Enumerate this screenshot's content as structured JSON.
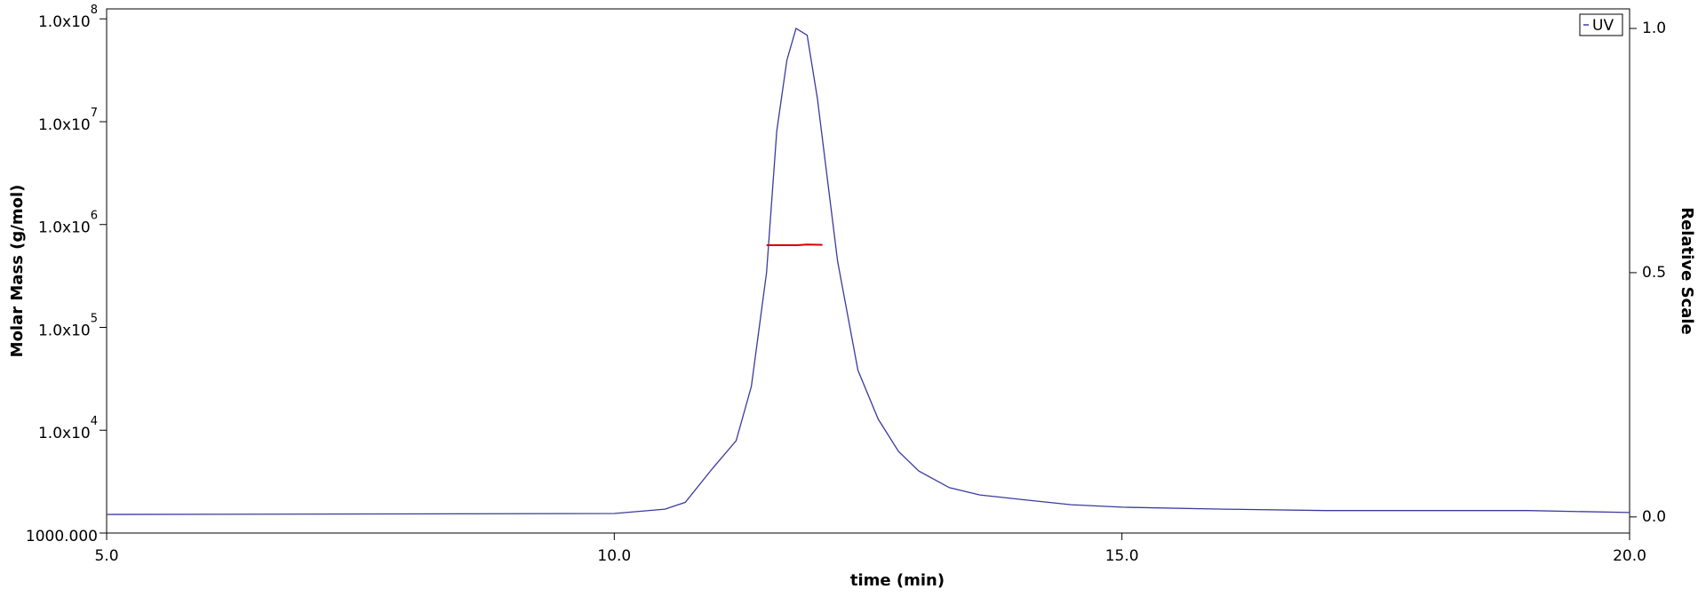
{
  "chart_data": {
    "type": "line",
    "xlabel": "time (min)",
    "ylabel": "Molar Mass (g/mol)",
    "y2label": "Relative Scale",
    "xlim": [
      5,
      20
    ],
    "xticks": [
      {
        "value": 5,
        "label": "5.0"
      },
      {
        "value": 10,
        "label": "10.0"
      },
      {
        "value": 15,
        "label": "15.0"
      },
      {
        "value": 20,
        "label": "20.0"
      }
    ],
    "ylog": true,
    "ylim": [
      1000,
      125000000
    ],
    "yticks": [
      {
        "value": 1000,
        "label": "1000.000"
      },
      {
        "value": 10000,
        "label": "1.0x10",
        "power": "4"
      },
      {
        "value": 100000,
        "label": "1.0x10",
        "power": "5"
      },
      {
        "value": 1000000,
        "label": "1.0x10",
        "power": "6"
      },
      {
        "value": 10000000,
        "label": "1.0x10",
        "power": "7"
      },
      {
        "value": 100000000,
        "label": "1.0x10",
        "power": "8"
      }
    ],
    "y2lim": [
      -0.033,
      1.04
    ],
    "y2ticks": [
      {
        "value": 0,
        "label": "0.0"
      },
      {
        "value": 0.5,
        "label": "0.5"
      },
      {
        "value": 1,
        "label": "1.0"
      }
    ],
    "legend": "top-right",
    "series": [
      {
        "name": "UV",
        "color": "#3a3a9e",
        "axis": "y2",
        "x": [
          5.0,
          10.0,
          10.5,
          10.7,
          10.97,
          11.2,
          11.35,
          11.5,
          11.6,
          11.7,
          11.79,
          11.9,
          12.0,
          12.1,
          12.2,
          12.4,
          12.6,
          12.8,
          13.0,
          13.3,
          13.6,
          14.0,
          14.5,
          15.0,
          16.0,
          17.0,
          18.0,
          19.0,
          20.0
        ],
        "values": [
          0.005,
          0.007,
          0.016,
          0.03,
          0.1,
          0.156,
          0.267,
          0.5,
          0.79,
          0.935,
          1.0,
          0.986,
          0.857,
          0.69,
          0.523,
          0.3,
          0.2,
          0.134,
          0.094,
          0.06,
          0.045,
          0.036,
          0.025,
          0.02,
          0.016,
          0.013,
          0.013,
          0.013,
          0.009
        ]
      },
      {
        "color": "#d40000",
        "axis": "y",
        "x": [
          11.5,
          11.8,
          11.9,
          12.05
        ],
        "values": [
          630000,
          630000,
          640000,
          635000
        ]
      }
    ]
  }
}
